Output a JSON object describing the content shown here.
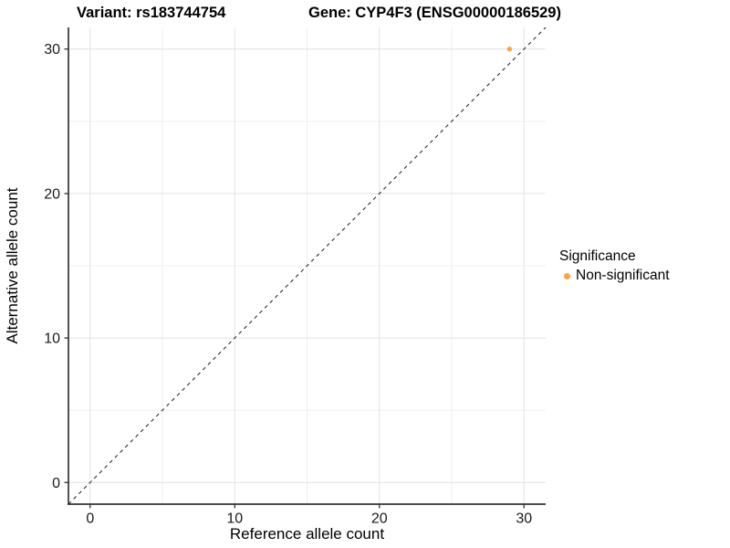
{
  "title": {
    "variant": "Variant: rs183744754",
    "gene": "Gene: CYP4F3 (ENSG00000186529)"
  },
  "chart_data": {
    "type": "scatter",
    "title": "Variant: rs183744754   Gene: CYP4F3 (ENSG00000186529)",
    "xlabel": "Reference allele count",
    "ylabel": "Alternative allele count",
    "xlim": [
      -1.5,
      31.5
    ],
    "ylim": [
      -1.5,
      31.5
    ],
    "x_ticks": [
      0,
      10,
      20,
      30
    ],
    "y_ticks": [
      0,
      10,
      20,
      30
    ],
    "x_minor_ticks": [
      5,
      15,
      25
    ],
    "y_minor_ticks": [
      5,
      15,
      25
    ],
    "grid": true,
    "series": [
      {
        "name": "Non-significant",
        "color": "#FAA43A",
        "points": [
          {
            "x": 29,
            "y": 30
          }
        ]
      }
    ],
    "reference_line": {
      "type": "abline",
      "slope": 1,
      "intercept": 0,
      "style": "dashed",
      "color": "#1a1a1a"
    },
    "legend": {
      "title": "Significance",
      "position": "right",
      "items": [
        {
          "label": "Non-significant",
          "color": "#FAA43A"
        }
      ]
    }
  },
  "colors": {
    "background": "#ffffff",
    "grid_major": "#e2e2e2",
    "grid_minor": "#efefef",
    "axis_line": "#333333",
    "tick_label": "#1a1a1a",
    "point": "#FAA43A"
  }
}
